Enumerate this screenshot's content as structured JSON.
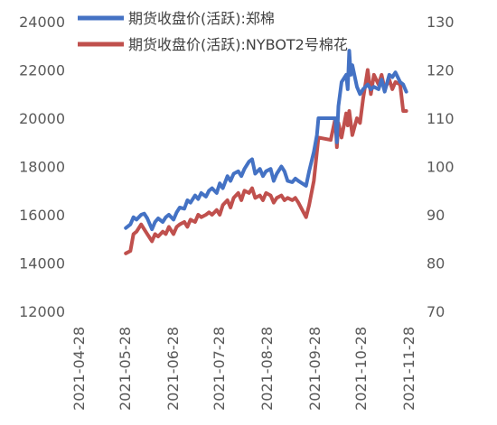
{
  "chart_data": {
    "type": "line",
    "title": "",
    "legend_position": "top",
    "grid": false,
    "x_axis": {
      "type": "date",
      "tick_labels": [
        "2021-04-28",
        "2021-05-28",
        "2021-06-28",
        "2021-07-28",
        "2021-08-28",
        "2021-09-28",
        "2021-10-28",
        "2021-11-28"
      ],
      "range": [
        "2021-04-28",
        "2021-11-28"
      ]
    },
    "y_left": {
      "range": [
        12000,
        24000
      ],
      "ticks": [
        "24000",
        "22000",
        "20000",
        "18000",
        "16000",
        "14000",
        "12000"
      ]
    },
    "y_right": {
      "range": [
        70,
        130
      ],
      "ticks": [
        "130",
        "120",
        "110",
        "100",
        "90",
        "80",
        "70"
      ]
    },
    "series": [
      {
        "name": "期货收盘价(活跃):郑棉",
        "axis": "left",
        "color": "#4472C4",
        "data": [
          [
            "2021-05-28",
            15450
          ],
          [
            "2021-05-31",
            15600
          ],
          [
            "2021-06-02",
            15900
          ],
          [
            "2021-06-04",
            15800
          ],
          [
            "2021-06-07",
            16000
          ],
          [
            "2021-06-09",
            16050
          ],
          [
            "2021-06-11",
            15850
          ],
          [
            "2021-06-14",
            15400
          ],
          [
            "2021-06-16",
            15700
          ],
          [
            "2021-06-18",
            15850
          ],
          [
            "2021-06-21",
            15700
          ],
          [
            "2021-06-23",
            15900
          ],
          [
            "2021-06-25",
            16000
          ],
          [
            "2021-06-28",
            15800
          ],
          [
            "2021-06-30",
            16100
          ],
          [
            "2021-07-02",
            16300
          ],
          [
            "2021-07-05",
            16250
          ],
          [
            "2021-07-07",
            16600
          ],
          [
            "2021-07-09",
            16500
          ],
          [
            "2021-07-12",
            16800
          ],
          [
            "2021-07-14",
            16650
          ],
          [
            "2021-07-16",
            16900
          ],
          [
            "2021-07-19",
            16750
          ],
          [
            "2021-07-21",
            17000
          ],
          [
            "2021-07-23",
            17100
          ],
          [
            "2021-07-26",
            16900
          ],
          [
            "2021-07-28",
            17300
          ],
          [
            "2021-07-30",
            17100
          ],
          [
            "2021-08-02",
            17600
          ],
          [
            "2021-08-04",
            17400
          ],
          [
            "2021-08-06",
            17700
          ],
          [
            "2021-08-09",
            17800
          ],
          [
            "2021-08-11",
            17600
          ],
          [
            "2021-08-13",
            17900
          ],
          [
            "2021-08-16",
            18200
          ],
          [
            "2021-08-18",
            18300
          ],
          [
            "2021-08-20",
            17700
          ],
          [
            "2021-08-23",
            17900
          ],
          [
            "2021-08-25",
            17600
          ],
          [
            "2021-08-27",
            17800
          ],
          [
            "2021-08-30",
            17900
          ],
          [
            "2021-09-01",
            17400
          ],
          [
            "2021-09-03",
            17700
          ],
          [
            "2021-09-06",
            18000
          ],
          [
            "2021-09-08",
            17800
          ],
          [
            "2021-09-10",
            17400
          ],
          [
            "2021-09-13",
            17350
          ],
          [
            "2021-09-15",
            17500
          ],
          [
            "2021-09-17",
            17400
          ],
          [
            "2021-09-22",
            17200
          ],
          [
            "2021-09-24",
            17800
          ],
          [
            "2021-09-27",
            18600
          ],
          [
            "2021-09-29",
            19300
          ],
          [
            "2021-09-30",
            20000
          ],
          [
            "2021-10-08",
            20000
          ],
          [
            "2021-10-11",
            20000
          ],
          [
            "2021-10-12",
            19000
          ],
          [
            "2021-10-13",
            20500
          ],
          [
            "2021-10-15",
            21500
          ],
          [
            "2021-10-18",
            21800
          ],
          [
            "2021-10-19",
            21200
          ],
          [
            "2021-10-20",
            22800
          ],
          [
            "2021-10-21",
            21800
          ],
          [
            "2021-10-22",
            22200
          ],
          [
            "2021-10-25",
            21300
          ],
          [
            "2021-10-27",
            21000
          ],
          [
            "2021-10-29",
            21200
          ],
          [
            "2021-11-01",
            21400
          ],
          [
            "2021-11-03",
            21200
          ],
          [
            "2021-11-05",
            21300
          ],
          [
            "2021-11-08",
            21200
          ],
          [
            "2021-11-10",
            21600
          ],
          [
            "2021-11-12",
            21100
          ],
          [
            "2021-11-15",
            21800
          ],
          [
            "2021-11-17",
            21700
          ],
          [
            "2021-11-19",
            21900
          ],
          [
            "2021-11-22",
            21500
          ],
          [
            "2021-11-24",
            21400
          ],
          [
            "2021-11-26",
            21100
          ]
        ]
      },
      {
        "name": "期货收盘价(活跃):NYBOT2号棉花",
        "axis": "right",
        "color": "#C0504D",
        "data": [
          [
            "2021-05-28",
            82
          ],
          [
            "2021-05-31",
            82.5
          ],
          [
            "2021-06-02",
            86
          ],
          [
            "2021-06-04",
            86.5
          ],
          [
            "2021-06-07",
            88
          ],
          [
            "2021-06-09",
            87
          ],
          [
            "2021-06-11",
            86
          ],
          [
            "2021-06-14",
            84.5
          ],
          [
            "2021-06-16",
            86
          ],
          [
            "2021-06-18",
            85.5
          ],
          [
            "2021-06-21",
            86.5
          ],
          [
            "2021-06-23",
            86
          ],
          [
            "2021-06-25",
            87.5
          ],
          [
            "2021-06-28",
            86
          ],
          [
            "2021-06-30",
            87.5
          ],
          [
            "2021-07-02",
            88
          ],
          [
            "2021-07-05",
            88.5
          ],
          [
            "2021-07-07",
            87.5
          ],
          [
            "2021-07-09",
            89
          ],
          [
            "2021-07-12",
            88.5
          ],
          [
            "2021-07-14",
            90
          ],
          [
            "2021-07-16",
            89.5
          ],
          [
            "2021-07-19",
            90
          ],
          [
            "2021-07-21",
            90.5
          ],
          [
            "2021-07-23",
            90
          ],
          [
            "2021-07-26",
            91
          ],
          [
            "2021-07-28",
            90
          ],
          [
            "2021-07-30",
            92
          ],
          [
            "2021-08-02",
            93
          ],
          [
            "2021-08-04",
            91.5
          ],
          [
            "2021-08-06",
            93.5
          ],
          [
            "2021-08-09",
            94.5
          ],
          [
            "2021-08-11",
            93
          ],
          [
            "2021-08-13",
            95
          ],
          [
            "2021-08-16",
            94.5
          ],
          [
            "2021-08-18",
            95.5
          ],
          [
            "2021-08-20",
            93.5
          ],
          [
            "2021-08-23",
            94
          ],
          [
            "2021-08-25",
            93
          ],
          [
            "2021-08-27",
            94.5
          ],
          [
            "2021-08-30",
            94
          ],
          [
            "2021-09-01",
            92.5
          ],
          [
            "2021-09-03",
            93.5
          ],
          [
            "2021-09-06",
            94
          ],
          [
            "2021-09-08",
            93
          ],
          [
            "2021-09-10",
            93.5
          ],
          [
            "2021-09-13",
            93
          ],
          [
            "2021-09-15",
            93.5
          ],
          [
            "2021-09-17",
            92.5
          ],
          [
            "2021-09-22",
            89.5
          ],
          [
            "2021-09-24",
            92
          ],
          [
            "2021-09-27",
            97
          ],
          [
            "2021-09-29",
            103
          ],
          [
            "2021-09-30",
            106
          ],
          [
            "2021-10-08",
            105.5
          ],
          [
            "2021-10-11",
            110
          ],
          [
            "2021-10-12",
            104
          ],
          [
            "2021-10-13",
            109
          ],
          [
            "2021-10-15",
            106
          ],
          [
            "2021-10-18",
            111
          ],
          [
            "2021-10-19",
            108.5
          ],
          [
            "2021-10-20",
            111.5
          ],
          [
            "2021-10-21",
            109
          ],
          [
            "2021-10-22",
            106.5
          ],
          [
            "2021-10-25",
            110
          ],
          [
            "2021-10-27",
            109
          ],
          [
            "2021-10-29",
            114
          ],
          [
            "2021-11-01",
            120
          ],
          [
            "2021-11-03",
            115
          ],
          [
            "2021-11-05",
            119
          ],
          [
            "2021-11-08",
            117
          ],
          [
            "2021-11-10",
            119
          ],
          [
            "2021-11-12",
            116
          ],
          [
            "2021-11-15",
            118
          ],
          [
            "2021-11-17",
            116
          ],
          [
            "2021-11-19",
            117.5
          ],
          [
            "2021-11-22",
            117
          ],
          [
            "2021-11-24",
            111.5
          ],
          [
            "2021-11-26",
            111.5
          ]
        ]
      }
    ]
  }
}
